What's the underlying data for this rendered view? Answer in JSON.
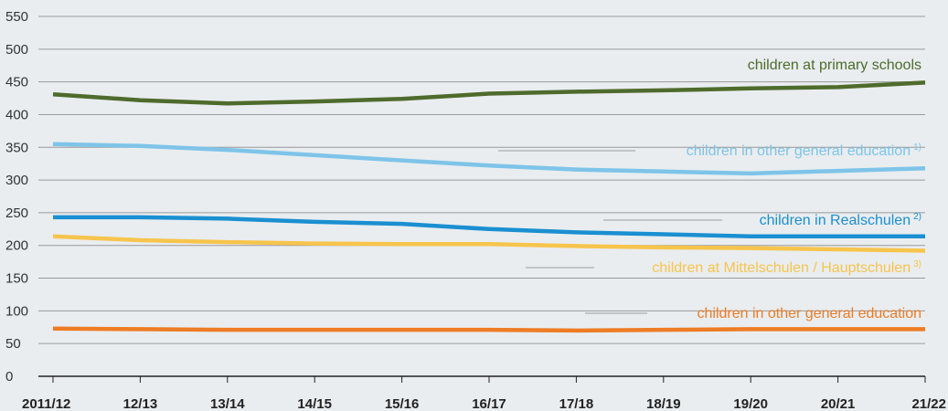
{
  "chart_data": {
    "type": "line",
    "title": "",
    "xlabel": "",
    "ylabel": "",
    "ylim": [
      0,
      550
    ],
    "yticks": [
      0,
      50,
      100,
      150,
      200,
      250,
      300,
      350,
      400,
      450,
      500,
      550
    ],
    "grid": true,
    "categories": [
      "2011/12",
      "12/13",
      "13/14",
      "14/15",
      "15/16",
      "16/17",
      "17/18",
      "18/19",
      "19/20",
      "20/21",
      "21/22"
    ],
    "series": [
      {
        "name": "children at primary schools",
        "footnote": "",
        "color": "#4e6b2c",
        "values": [
          431,
          422,
          417,
          420,
          424,
          432,
          435,
          437,
          440,
          442,
          449
        ]
      },
      {
        "name": "children in other general education",
        "footnote": "1)",
        "color": "#7ec4e8",
        "values": [
          355,
          352,
          346,
          338,
          330,
          322,
          316,
          313,
          310,
          314,
          318
        ]
      },
      {
        "name": "children in Realschulen",
        "footnote": "2)",
        "color": "#1a8fd1",
        "values": [
          243,
          243,
          241,
          236,
          233,
          225,
          220,
          217,
          214,
          214,
          214
        ]
      },
      {
        "name": "children at Mittelschulen / Hauptschulen",
        "footnote": "3)",
        "color": "#f7c44c",
        "values": [
          214,
          208,
          205,
          203,
          202,
          202,
          199,
          197,
          196,
          194,
          192
        ]
      },
      {
        "name": "children in other general education",
        "footnote": "",
        "color": "#ee7c24",
        "values": [
          73,
          72,
          71,
          71,
          71,
          71,
          70,
          71,
          72,
          72,
          72
        ]
      }
    ]
  }
}
